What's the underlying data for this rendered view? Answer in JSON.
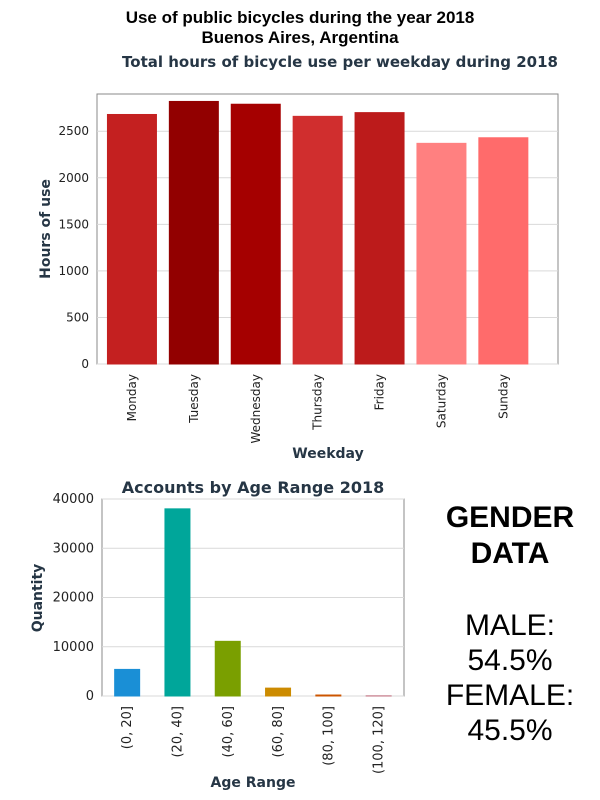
{
  "header": {
    "title_line1": "Use of public bicycles during the year 2018",
    "title_line2": "Buenos Aires, Argentina"
  },
  "chart_data": [
    {
      "type": "bar",
      "title": "Total hours of bicycle use per weekday during 2018",
      "xlabel": "Weekday",
      "ylabel": "Hours of use",
      "categories": [
        "Monday",
        "Tuesday",
        "Wednesday",
        "Thursday",
        "Friday",
        "Saturday",
        "Sunday"
      ],
      "values": [
        2680,
        2820,
        2790,
        2660,
        2700,
        2370,
        2430
      ],
      "ylim": [
        0,
        2900
      ],
      "yticks": [
        0,
        500,
        1000,
        1500,
        2000,
        2500
      ],
      "colors": [
        "#c42020",
        "#920000",
        "#a50000",
        "#d02e2e",
        "#bc1b1b",
        "#ff8080",
        "#ff6b6b"
      ],
      "grid": true
    },
    {
      "type": "bar",
      "title": "Accounts by Age Range 2018",
      "xlabel": "Age Range",
      "ylabel": "Quantity",
      "categories": [
        "(0, 20]",
        "(20, 40]",
        "(40, 60]",
        "(60, 80]",
        "(80, 100]",
        "(100, 120]"
      ],
      "values": [
        5400,
        38000,
        11100,
        1600,
        200,
        30
      ],
      "ylim": [
        0,
        40000
      ],
      "yticks": [
        0,
        10000,
        20000,
        30000,
        40000
      ],
      "colors": [
        "#1a8fd6",
        "#00a69a",
        "#7a9f00",
        "#cc8b00",
        "#cc5500",
        "#c07080"
      ],
      "grid": true
    }
  ],
  "gender": {
    "heading_line1": "GENDER",
    "heading_line2": "DATA",
    "male_label": "MALE:",
    "male_value": "54.5%",
    "female_label": "FEMALE:",
    "female_value": "45.5%"
  }
}
